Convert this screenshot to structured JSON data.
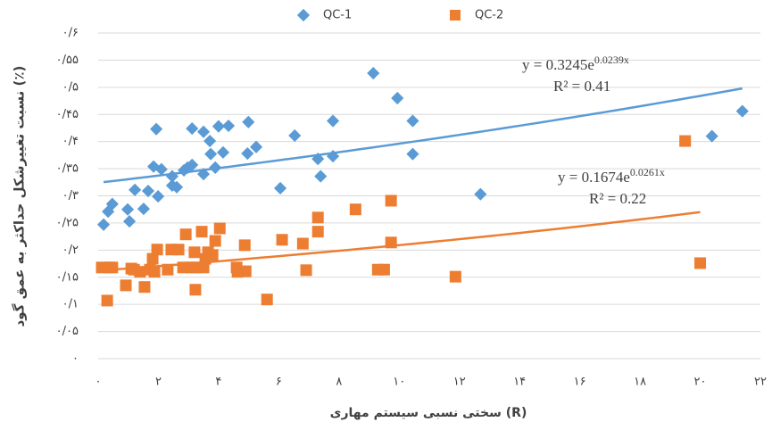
{
  "chart_data": {
    "type": "scatter",
    "title_y": "نسبت تغییرشکل حداکثر به عمق گود (٪)",
    "title_x": "سختی نسبی سیستم مهاری (R)",
    "xlim": [
      0,
      22
    ],
    "ylim": [
      0,
      0.6
    ],
    "grid": true,
    "legend": "top",
    "trendline": "exponential",
    "xticks": [
      {
        "value": 0,
        "label": "۰"
      },
      {
        "value": 2,
        "label": "۲"
      },
      {
        "value": 4,
        "label": "۴"
      },
      {
        "value": 6,
        "label": "۶"
      },
      {
        "value": 8,
        "label": "۸"
      },
      {
        "value": 10,
        "label": "۱۰"
      },
      {
        "value": 12,
        "label": "۱۲"
      },
      {
        "value": 14,
        "label": "۱۴"
      },
      {
        "value": 16,
        "label": "۱۶"
      },
      {
        "value": 18,
        "label": "۱۸"
      },
      {
        "value": 20,
        "label": "۲۰"
      },
      {
        "value": 22,
        "label": "۲۲"
      }
    ],
    "yticks": [
      {
        "value": 0,
        "label": "۰"
      },
      {
        "value": 0.05,
        "label": "۰/۰۵"
      },
      {
        "value": 0.1,
        "label": "۰/۱"
      },
      {
        "value": 0.15,
        "label": "۰/۱۵"
      },
      {
        "value": 0.2,
        "label": "۰/۲"
      },
      {
        "value": 0.25,
        "label": "۰/۲۵"
      },
      {
        "value": 0.3,
        "label": "۰/۳"
      },
      {
        "value": 0.35,
        "label": "۰/۳۵"
      },
      {
        "value": 0.4,
        "label": "۰/۴"
      },
      {
        "value": 0.45,
        "label": "۰/۴۵"
      },
      {
        "value": 0.5,
        "label": "۰/۵"
      },
      {
        "value": 0.55,
        "label": "۰/۵۵"
      },
      {
        "value": 0.6,
        "label": "۰/۶"
      }
    ],
    "series": [
      {
        "name": "QC-1",
        "color": "#5b9bd5",
        "marker": "diamond",
        "equation": "y = 0.3245e",
        "exponent": "0.0239x",
        "r2": "R² = 0.41",
        "x": [
          0.18,
          0.33,
          0.47,
          0.98,
          1.04,
          1.22,
          1.51,
          1.66,
          1.84,
          1.93,
          1.99,
          2.1,
          2.46,
          2.46,
          2.61,
          2.85,
          2.97,
          3.12,
          3.12,
          3.5,
          3.5,
          3.71,
          3.74,
          3.89,
          4.0,
          4.15,
          4.33,
          4.96,
          4.99,
          5.25,
          6.05,
          6.53,
          7.3,
          7.39,
          7.8,
          7.8,
          9.14,
          9.94,
          10.45,
          10.45,
          12.7,
          20.39,
          21.4
        ],
        "values": [
          0.247,
          0.271,
          0.285,
          0.275,
          0.253,
          0.311,
          0.276,
          0.309,
          0.354,
          0.423,
          0.299,
          0.349,
          0.336,
          0.319,
          0.316,
          0.347,
          0.352,
          0.357,
          0.424,
          0.34,
          0.418,
          0.401,
          0.377,
          0.352,
          0.428,
          0.38,
          0.429,
          0.378,
          0.436,
          0.39,
          0.314,
          0.411,
          0.368,
          0.336,
          0.373,
          0.438,
          0.526,
          0.48,
          0.438,
          0.377,
          0.303,
          0.41,
          0.456
        ]
      },
      {
        "name": "QC-2",
        "color": "#ed7d31",
        "marker": "square",
        "equation": "y = 0.1674e",
        "exponent": "0.0261x",
        "r2": "R² = 0.22",
        "x": [
          0.12,
          0.36,
          0.47,
          0.3,
          0.92,
          1.1,
          1.19,
          1.39,
          1.54,
          1.72,
          1.81,
          1.87,
          1.96,
          2.31,
          2.43,
          2.67,
          2.82,
          2.91,
          3.12,
          3.2,
          3.23,
          3.26,
          3.44,
          3.5,
          3.56,
          3.65,
          3.8,
          3.89,
          4.04,
          4.6,
          4.63,
          4.87,
          4.9,
          5.61,
          6.11,
          6.8,
          6.91,
          7.3,
          7.3,
          8.55,
          9.29,
          9.5,
          9.73,
          9.73,
          11.87,
          19.5,
          20.0
        ],
        "values": [
          0.168,
          0.168,
          0.168,
          0.107,
          0.135,
          0.166,
          0.164,
          0.16,
          0.132,
          0.164,
          0.184,
          0.16,
          0.201,
          0.164,
          0.201,
          0.201,
          0.168,
          0.229,
          0.168,
          0.196,
          0.127,
          0.168,
          0.234,
          0.168,
          0.184,
          0.196,
          0.191,
          0.217,
          0.24,
          0.168,
          0.16,
          0.209,
          0.161,
          0.109,
          0.219,
          0.212,
          0.163,
          0.26,
          0.234,
          0.275,
          0.164,
          0.164,
          0.291,
          0.214,
          0.151,
          0.401,
          0.176
        ]
      }
    ]
  }
}
